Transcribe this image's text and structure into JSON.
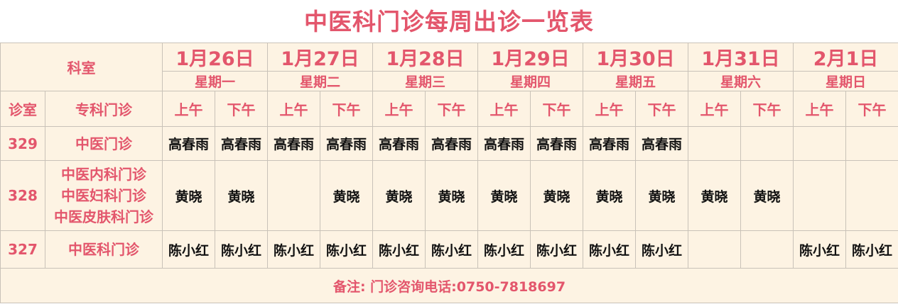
{
  "title": "中医科门诊每周出诊一览表",
  "header": {
    "department": "科室",
    "room": "诊室",
    "specialty": "专科门诊",
    "sessions": [
      "上午",
      "下午"
    ],
    "days": [
      {
        "date": "1月26日",
        "weekday": "星期一"
      },
      {
        "date": "1月27日",
        "weekday": "星期二"
      },
      {
        "date": "1月28日",
        "weekday": "星期三"
      },
      {
        "date": "1月29日",
        "weekday": "星期四"
      },
      {
        "date": "1月30日",
        "weekday": "星期五"
      },
      {
        "date": "1月31日",
        "weekday": "星期六"
      },
      {
        "date": "2月1日",
        "weekday": "星期日"
      }
    ]
  },
  "rows": [
    {
      "room": "329",
      "specialty": [
        "中医门诊"
      ],
      "doctors": [
        "高春雨",
        "高春雨",
        "高春雨",
        "高春雨",
        "高春雨",
        "高春雨",
        "高春雨",
        "高春雨",
        "高春雨",
        "高春雨",
        null,
        null,
        null,
        null
      ]
    },
    {
      "room": "328",
      "specialty": [
        "中医内科门诊",
        "中医妇科门诊",
        "中医皮肤科门诊"
      ],
      "doctors": [
        "黄晓",
        "黄晓",
        null,
        "黄晓",
        "黄晓",
        "黄晓",
        "黄晓",
        "黄晓",
        "黄晓",
        "黄晓",
        "黄晓",
        "黄晓",
        null,
        null
      ]
    },
    {
      "room": "327",
      "specialty": [
        "中医科门诊"
      ],
      "doctors": [
        "陈小红",
        "陈小红",
        "陈小红",
        "陈小红",
        "陈小红",
        "陈小红",
        "陈小红",
        "陈小红",
        "陈小红",
        "陈小红",
        null,
        null,
        "陈小红",
        "陈小红"
      ]
    }
  ],
  "footer": "备注: 门诊咨询电话:0750-7818697"
}
